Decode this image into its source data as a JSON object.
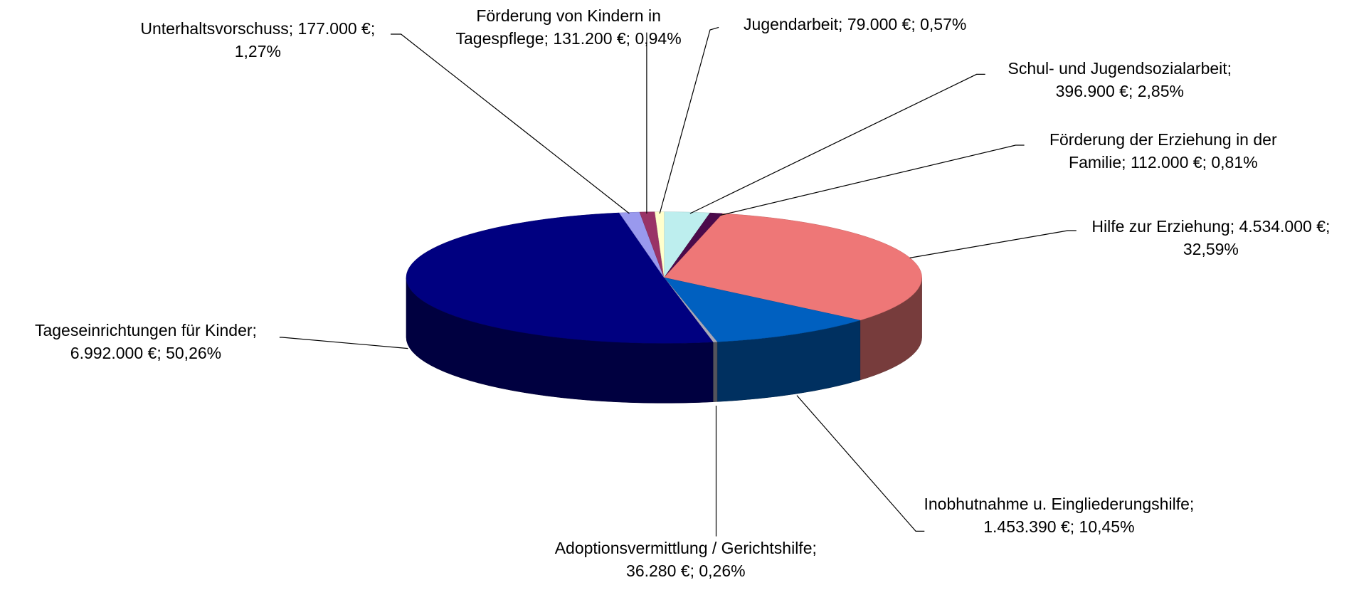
{
  "chart_data": {
    "type": "pie",
    "three_d": true,
    "label_separator": "; ",
    "categories": [
      "Schul- und Jugendsozialarbeit",
      "Förderung der Erziehung in der Familie",
      "Hilfe zur Erziehung",
      "Inobhutnahme u. Eingliederungshilfe",
      "Adoptionsvermittlung / Gerichtshilfe",
      "Tageseinrichtungen für Kinder",
      "Unterhaltsvorschuss",
      "Förderung von Kindern in Tagespflege",
      "Jugendarbeit"
    ],
    "values": [
      396900,
      112000,
      4534000,
      1453390,
      36280,
      6992000,
      177000,
      131200,
      79000
    ],
    "value_labels": [
      "396.900 €",
      "112.000 €",
      "4.534.000 €",
      "1.453.390 €",
      "36.280 €",
      "6.992.000 €",
      "177.000 €",
      "131.200 €",
      "79.000 €"
    ],
    "percentages": [
      2.85,
      0.81,
      32.59,
      10.45,
      0.26,
      50.26,
      1.27,
      0.94,
      0.57
    ],
    "percentage_labels": [
      "2,85%",
      "0,81%",
      "32,59%",
      "10,45%",
      "0,26%",
      "50,26%",
      "1,27%",
      "0,94%",
      "0,57%"
    ],
    "colors": [
      "#bdeeee",
      "#4b0a4b",
      "#ee7777",
      "#0060c0",
      "#a8a8b8",
      "#000080",
      "#9999ee",
      "#993366",
      "#ffffcc"
    ]
  }
}
